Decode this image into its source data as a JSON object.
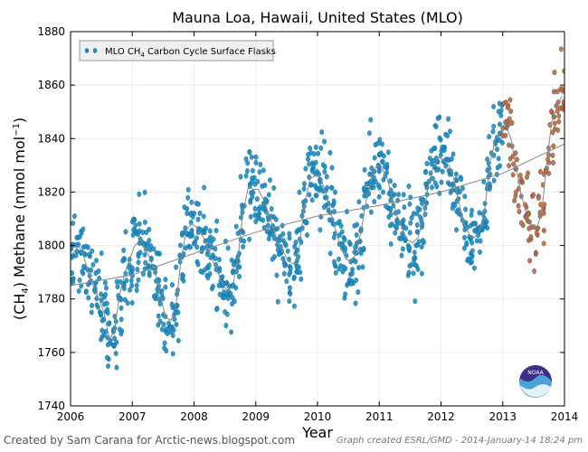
{
  "chart_data": {
    "type": "scatter",
    "title": "Mauna Loa, Hawaii, United States (MLO)",
    "xlabel": "Year",
    "ylabel": "(CH4) Methane (nmol mol-1)",
    "ylabel_parts": {
      "pre": "(CH",
      "sub": "4",
      "mid": ") Methane (nmol mol",
      "sup": "−1",
      "post": ")"
    },
    "xlim": [
      2006,
      2014
    ],
    "ylim": [
      1740,
      1880
    ],
    "x_ticks": [
      2006,
      2007,
      2008,
      2009,
      2010,
      2011,
      2012,
      2013,
      2014
    ],
    "y_ticks": [
      1740,
      1760,
      1780,
      1800,
      1820,
      1840,
      1860,
      1880
    ],
    "grid": true,
    "legend": {
      "position": "top-left",
      "label_pre": "MLO CH",
      "label_sub": "4",
      "label_post": " Carbon Cycle Surface Flasks"
    },
    "colors": {
      "final": "#1b8ec7",
      "preliminary": "#d2602a",
      "fit": "#888888"
    },
    "series": [
      {
        "name": "MLO CH4 Carbon Cycle Surface Flasks (final)",
        "monthly_mean": {
          "x": [
            2006.04,
            2006.13,
            2006.21,
            2006.29,
            2006.38,
            2006.46,
            2006.54,
            2006.63,
            2006.71,
            2006.79,
            2006.88,
            2006.96,
            2007.04,
            2007.13,
            2007.21,
            2007.29,
            2007.38,
            2007.46,
            2007.54,
            2007.63,
            2007.71,
            2007.79,
            2007.88,
            2007.96,
            2008.04,
            2008.13,
            2008.21,
            2008.29,
            2008.38,
            2008.46,
            2008.54,
            2008.63,
            2008.71,
            2008.79,
            2008.88,
            2008.96,
            2009.04,
            2009.13,
            2009.21,
            2009.29,
            2009.38,
            2009.46,
            2009.54,
            2009.63,
            2009.71,
            2009.79,
            2009.88,
            2009.96,
            2010.04,
            2010.13,
            2010.21,
            2010.29,
            2010.38,
            2010.46,
            2010.54,
            2010.63,
            2010.71,
            2010.79,
            2010.88,
            2010.96,
            2011.04,
            2011.13,
            2011.21,
            2011.29,
            2011.38,
            2011.46,
            2011.54,
            2011.63,
            2011.71,
            2011.79,
            2011.88,
            2011.96,
            2012.04,
            2012.13,
            2012.21,
            2012.29,
            2012.38,
            2012.46,
            2012.54,
            2012.63,
            2012.71,
            2012.79,
            2012.88,
            2012.96
          ],
          "y": [
            1797,
            1800,
            1796,
            1790,
            1784,
            1780,
            1775,
            1765,
            1768,
            1781,
            1790,
            1795,
            1800,
            1802,
            1799,
            1795,
            1789,
            1781,
            1773,
            1772,
            1778,
            1795,
            1806,
            1808,
            1807,
            1804,
            1800,
            1795,
            1790,
            1786,
            1783,
            1785,
            1795,
            1812,
            1822,
            1821,
            1821,
            1817,
            1812,
            1806,
            1800,
            1797,
            1794,
            1793,
            1800,
            1815,
            1825,
            1826,
            1826,
            1820,
            1813,
            1806,
            1799,
            1795,
            1794,
            1797,
            1806,
            1817,
            1826,
            1830,
            1829,
            1825,
            1818,
            1811,
            1806,
            1802,
            1801,
            1803,
            1810,
            1822,
            1830,
            1833,
            1832,
            1830,
            1825,
            1816,
            1808,
            1804,
            1803,
            1806,
            1814,
            1830,
            1840,
            1842
          ]
        },
        "scatter_note": "Individual flask samples scattered around monthly means (approx. ±10 nmol/mol)"
      },
      {
        "name": "MLO CH4 Carbon Cycle Surface Flasks (preliminary)",
        "monthly_mean": {
          "x": [
            2013.04,
            2013.13,
            2013.21,
            2013.29,
            2013.38,
            2013.46,
            2013.54,
            2013.63,
            2013.71,
            2013.79,
            2013.88,
            2013.96
          ],
          "y": [
            1846,
            1840,
            1830,
            1820,
            1812,
            1808,
            1806,
            1812,
            1830,
            1846,
            1852,
            1856
          ]
        }
      },
      {
        "name": "Smoothed fit",
        "kind": "line",
        "x": [
          2006.0,
          2007.0,
          2008.0,
          2009.0,
          2010.0,
          2011.0,
          2012.0,
          2013.0,
          2014.0
        ],
        "y": [
          1785,
          1789,
          1797,
          1805,
          1811,
          1815,
          1820,
          1827,
          1838
        ]
      }
    ]
  },
  "footer": {
    "credit": "Created by Sam Carana for Arctic-news.blogspot.com",
    "graph_info": "Graph created ESRL/GMD - 2014-January-14 18:24 pm"
  },
  "logo": {
    "text": "NOAA",
    "color": "#3d2e8c",
    "wave_color": "#4aa3d8"
  }
}
